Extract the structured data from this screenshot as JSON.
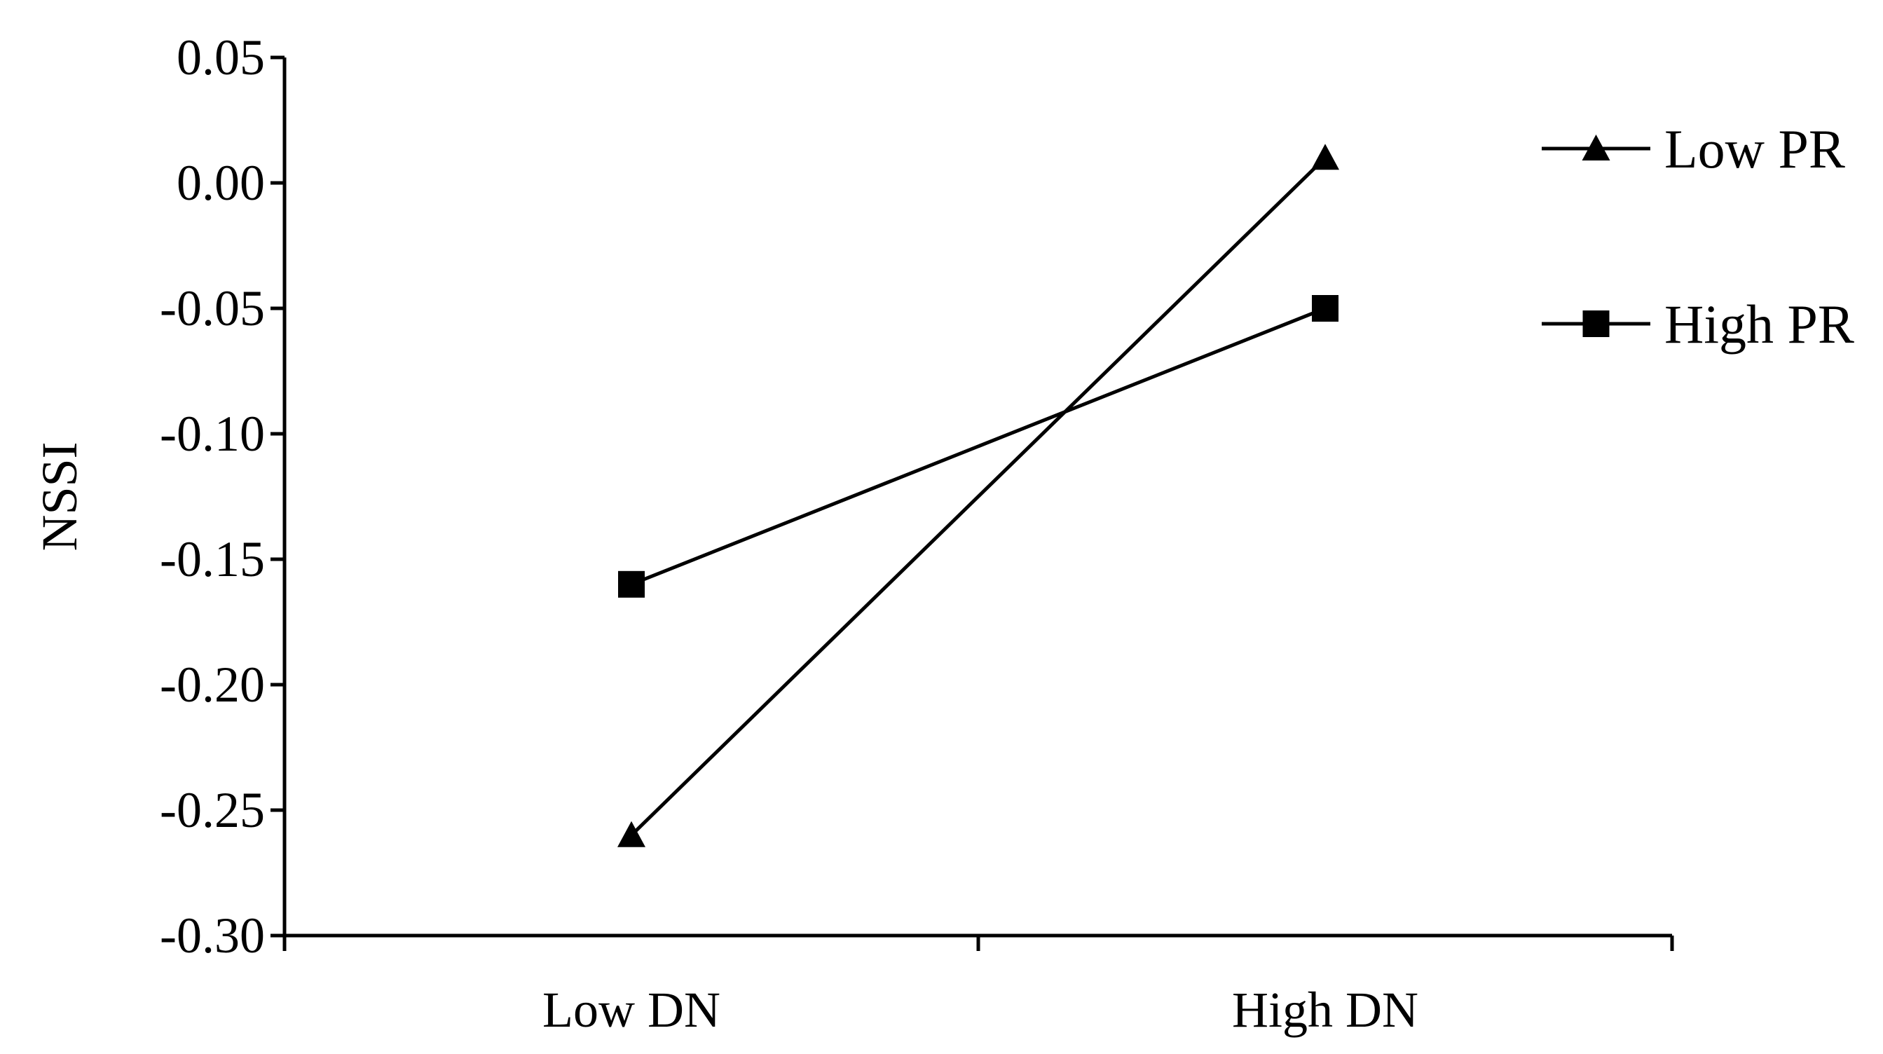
{
  "chart_data": {
    "type": "line",
    "categories": [
      "Low DN",
      "High DN"
    ],
    "series": [
      {
        "name": "Low PR",
        "marker": "triangle",
        "values": [
          -0.26,
          0.01
        ]
      },
      {
        "name": "High PR",
        "marker": "square",
        "values": [
          -0.16,
          -0.05
        ]
      }
    ],
    "ylabel": "NSSI",
    "xlabel": "",
    "ylim": [
      -0.3,
      0.05
    ],
    "yticks": [
      "0.05",
      "0.00",
      "-0.05",
      "-0.10",
      "-0.15",
      "-0.20",
      "-0.25",
      "-0.30"
    ],
    "grid": false,
    "legend": "right",
    "line_color": "#000000"
  }
}
